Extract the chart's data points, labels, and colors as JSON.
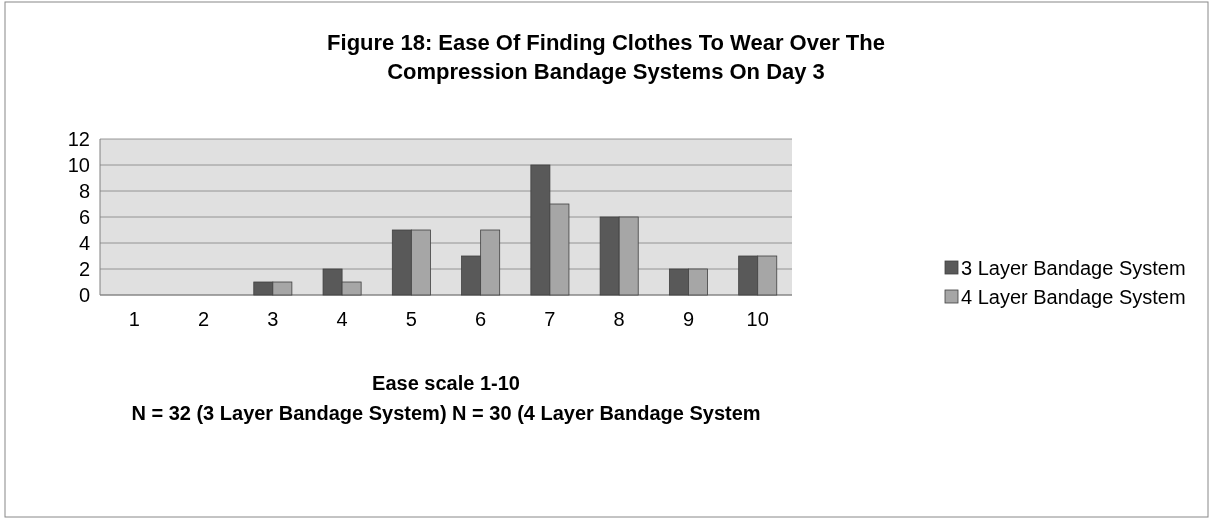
{
  "chart_data": {
    "type": "bar",
    "title": "Figure 18: Ease Of Finding Clothes To Wear Over The\nCompression Bandage Systems On Day 3",
    "xlabel": "Ease scale 1-10",
    "annotations": [
      "N = 32 (3 Layer Bandage System) N = 30 (4 Layer Bandage System"
    ],
    "categories": [
      "1",
      "2",
      "3",
      "4",
      "5",
      "6",
      "7",
      "8",
      "9",
      "10"
    ],
    "series": [
      {
        "name": "3 Layer Bandage System",
        "color": "#595959",
        "values": [
          0,
          0,
          1,
          2,
          5,
          3,
          10,
          6,
          2,
          3
        ]
      },
      {
        "name": "4 Layer Bandage System",
        "color": "#a6a6a6",
        "values": [
          0,
          0,
          1,
          1,
          5,
          5,
          7,
          6,
          2,
          3
        ]
      }
    ],
    "ylim": [
      0,
      12
    ],
    "yticks": [
      0,
      2,
      4,
      6,
      8,
      10,
      12
    ],
    "grid": "y",
    "legend": "right"
  }
}
